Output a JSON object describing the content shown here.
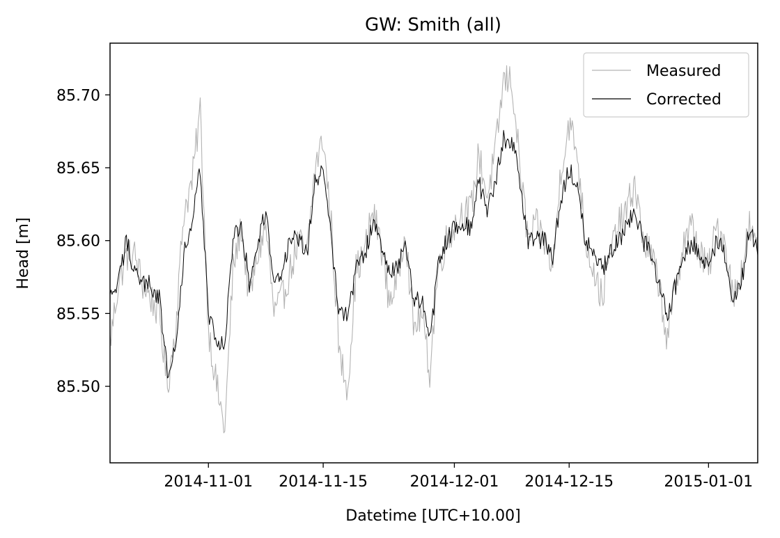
{
  "chart_data": {
    "type": "line",
    "title": "GW: Smith (all)",
    "xlabel": "Datetime [UTC+10.00]",
    "ylabel": "Head [m]",
    "xlim": [
      "2014-10-20",
      "2015-01-07"
    ],
    "ylim": [
      85.4475,
      85.7355
    ],
    "x_ticks": [
      "2014-11-01",
      "2014-11-15",
      "2014-12-01",
      "2014-12-15",
      "2015-01-01"
    ],
    "y_ticks": [
      "85.50",
      "85.55",
      "85.60",
      "85.65",
      "85.70"
    ],
    "grid": false,
    "legend_position": "top-right",
    "series": [
      {
        "name": "Measured",
        "color": "#b3b3b3",
        "x": [
          "2014-10-20",
          "2014-10-21",
          "2014-10-22",
          "2014-10-23",
          "2014-10-24",
          "2014-10-25",
          "2014-10-26",
          "2014-10-27",
          "2014-10-28",
          "2014-10-29",
          "2014-10-30",
          "2014-10-31",
          "2014-11-01",
          "2014-11-02",
          "2014-11-03",
          "2014-11-04",
          "2014-11-05",
          "2014-11-06",
          "2014-11-07",
          "2014-11-08",
          "2014-11-09",
          "2014-11-10",
          "2014-11-11",
          "2014-11-12",
          "2014-11-13",
          "2014-11-14",
          "2014-11-15",
          "2014-11-16",
          "2014-11-17",
          "2014-11-18",
          "2014-11-19",
          "2014-11-20",
          "2014-11-21",
          "2014-11-22",
          "2014-11-23",
          "2014-11-24",
          "2014-11-25",
          "2014-11-26",
          "2014-11-27",
          "2014-11-28",
          "2014-11-29",
          "2014-11-30",
          "2014-12-01",
          "2014-12-02",
          "2014-12-03",
          "2014-12-04",
          "2014-12-05",
          "2014-12-06",
          "2014-12-07",
          "2014-12-08",
          "2014-12-09",
          "2014-12-10",
          "2014-12-11",
          "2014-12-12",
          "2014-12-13",
          "2014-12-14",
          "2014-12-15",
          "2014-12-16",
          "2014-12-17",
          "2014-12-18",
          "2014-12-19",
          "2014-12-20",
          "2014-12-21",
          "2014-12-22",
          "2014-12-23",
          "2014-12-24",
          "2014-12-25",
          "2014-12-26",
          "2014-12-27",
          "2014-12-28",
          "2014-12-29",
          "2014-12-30",
          "2014-12-31",
          "2015-01-01",
          "2015-01-02",
          "2015-01-03",
          "2015-01-04",
          "2015-01-05",
          "2015-01-06",
          "2015-01-07"
        ],
        "values": [
          85.53,
          85.57,
          85.59,
          85.59,
          85.57,
          85.56,
          85.55,
          85.5,
          85.54,
          85.62,
          85.64,
          85.69,
          85.54,
          85.5,
          85.47,
          85.58,
          85.61,
          85.56,
          85.59,
          85.61,
          85.55,
          85.56,
          85.58,
          85.6,
          85.59,
          85.65,
          85.67,
          85.61,
          85.52,
          85.5,
          85.58,
          85.59,
          85.62,
          85.6,
          85.56,
          85.57,
          85.61,
          85.54,
          85.55,
          85.51,
          85.58,
          85.6,
          85.61,
          85.62,
          85.62,
          85.66,
          85.63,
          85.66,
          85.71,
          85.71,
          85.65,
          85.6,
          85.61,
          85.6,
          85.58,
          85.65,
          85.68,
          85.66,
          85.6,
          85.58,
          85.56,
          85.59,
          85.61,
          85.62,
          85.64,
          85.6,
          85.59,
          85.57,
          85.53,
          85.57,
          85.6,
          85.61,
          85.59,
          85.58,
          85.61,
          85.6,
          85.56,
          85.58,
          85.61,
          85.59
        ]
      },
      {
        "name": "Corrected",
        "color": "#000000",
        "x": [
          "2014-10-20",
          "2014-10-21",
          "2014-10-22",
          "2014-10-23",
          "2014-10-24",
          "2014-10-25",
          "2014-10-26",
          "2014-10-27",
          "2014-10-28",
          "2014-10-29",
          "2014-10-30",
          "2014-10-31",
          "2014-11-01",
          "2014-11-02",
          "2014-11-03",
          "2014-11-04",
          "2014-11-05",
          "2014-11-06",
          "2014-11-07",
          "2014-11-08",
          "2014-11-09",
          "2014-11-10",
          "2014-11-11",
          "2014-11-12",
          "2014-11-13",
          "2014-11-14",
          "2014-11-15",
          "2014-11-16",
          "2014-11-17",
          "2014-11-18",
          "2014-11-19",
          "2014-11-20",
          "2014-11-21",
          "2014-11-22",
          "2014-11-23",
          "2014-11-24",
          "2014-11-25",
          "2014-11-26",
          "2014-11-27",
          "2014-11-28",
          "2014-11-29",
          "2014-11-30",
          "2014-12-01",
          "2014-12-02",
          "2014-12-03",
          "2014-12-04",
          "2014-12-05",
          "2014-12-06",
          "2014-12-07",
          "2014-12-08",
          "2014-12-09",
          "2014-12-10",
          "2014-12-11",
          "2014-12-12",
          "2014-12-13",
          "2014-12-14",
          "2014-12-15",
          "2014-12-16",
          "2014-12-17",
          "2014-12-18",
          "2014-12-19",
          "2014-12-20",
          "2014-12-21",
          "2014-12-22",
          "2014-12-23",
          "2014-12-24",
          "2014-12-25",
          "2014-12-26",
          "2014-12-27",
          "2014-12-28",
          "2014-12-29",
          "2014-12-30",
          "2014-12-31",
          "2015-01-01",
          "2015-01-02",
          "2015-01-03",
          "2015-01-04",
          "2015-01-05",
          "2015-01-06",
          "2015-01-07"
        ],
        "values": [
          85.56,
          85.57,
          85.6,
          85.58,
          85.57,
          85.57,
          85.56,
          85.51,
          85.53,
          85.59,
          85.61,
          85.65,
          85.55,
          85.53,
          85.53,
          85.6,
          85.61,
          85.57,
          85.6,
          85.62,
          85.57,
          85.58,
          85.6,
          85.6,
          85.59,
          85.64,
          85.65,
          85.6,
          85.55,
          85.55,
          85.58,
          85.59,
          85.61,
          85.6,
          85.58,
          85.58,
          85.6,
          85.56,
          85.56,
          85.53,
          85.58,
          85.6,
          85.61,
          85.61,
          85.61,
          85.64,
          85.62,
          85.64,
          85.67,
          85.67,
          85.64,
          85.6,
          85.6,
          85.6,
          85.59,
          85.63,
          85.65,
          85.64,
          85.6,
          85.59,
          85.58,
          85.59,
          85.6,
          85.61,
          85.62,
          85.6,
          85.59,
          85.57,
          85.55,
          85.57,
          85.59,
          85.6,
          85.59,
          85.58,
          85.6,
          85.59,
          85.56,
          85.57,
          85.61,
          85.59
        ]
      }
    ]
  }
}
